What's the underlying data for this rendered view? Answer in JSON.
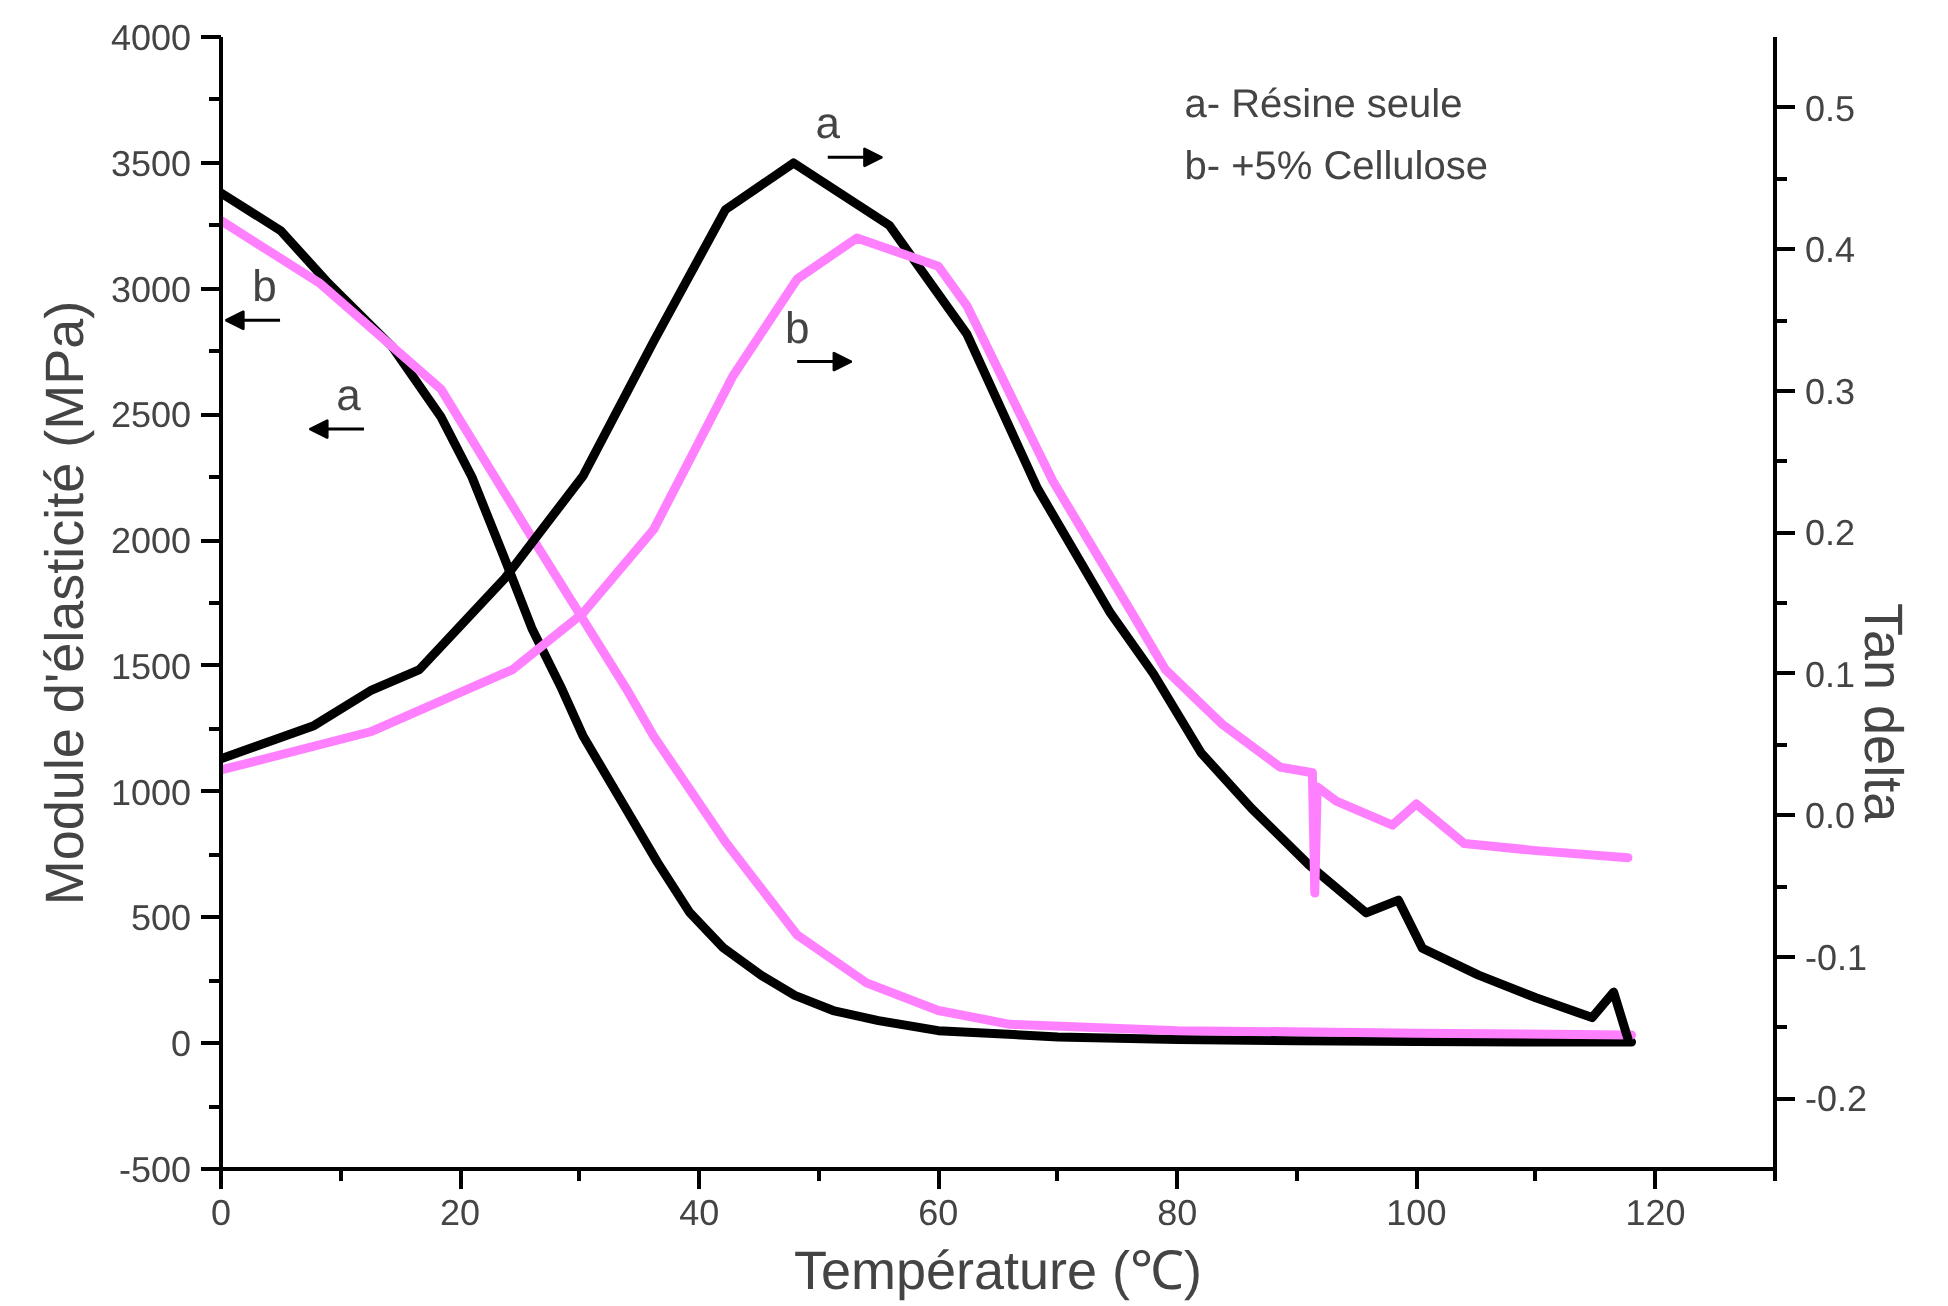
{
  "chart_data": {
    "type": "line",
    "xlabel": "Température (℃)",
    "ylabel": "Module d'élasticité (MPa)",
    "y2label": "Tan delta",
    "xlim": [
      0,
      130
    ],
    "ylim": [
      -500,
      4000
    ],
    "y2lim": [
      -0.25,
      0.55
    ],
    "xticks": [
      0,
      {
        "value": 10,
        "label": null
      },
      20,
      {
        "value": 30,
        "label": null
      },
      40,
      {
        "value": 50,
        "label": null
      },
      60,
      {
        "value": 70,
        "label": null
      },
      80,
      {
        "value": 90,
        "label": null
      },
      100,
      {
        "value": 110,
        "label": null
      },
      120,
      {
        "value": 130,
        "label": null
      }
    ],
    "yticks": [
      -500,
      {
        "value": -250,
        "label": null
      },
      0,
      {
        "value": 250,
        "label": null
      },
      500,
      {
        "value": 750,
        "label": null
      },
      1000,
      {
        "value": 1250,
        "label": null
      },
      1500,
      {
        "value": 1750,
        "label": null
      },
      2000,
      {
        "value": 2250,
        "label": null
      },
      2500,
      {
        "value": 2750,
        "label": null
      },
      3000,
      {
        "value": 3250,
        "label": null
      },
      3500,
      {
        "value": 3750,
        "label": null
      },
      4000
    ],
    "y2ticks": [
      {
        "value": -0.2,
        "label": "-0.2"
      },
      {
        "value": -0.15,
        "label": null
      },
      {
        "value": -0.1,
        "label": "-0.1"
      },
      {
        "value": -0.05,
        "label": null
      },
      {
        "value": 0,
        "label": "0.0"
      },
      {
        "value": 0.05,
        "label": null
      },
      {
        "value": 0.1,
        "label": "0.1"
      },
      {
        "value": 0.15,
        "label": null
      },
      {
        "value": 0.2,
        "label": "0.2"
      },
      {
        "value": 0.25,
        "label": null
      },
      {
        "value": 0.3,
        "label": "0.3"
      },
      {
        "value": 0.35,
        "label": null
      },
      {
        "value": 0.4,
        "label": "0.4"
      },
      {
        "value": 0.45,
        "label": null
      },
      {
        "value": 0.5,
        "label": "0.5"
      }
    ],
    "grid": false,
    "legend": false,
    "line_style": "solid",
    "marker": "none",
    "series": [
      {
        "name": "a",
        "color": "#000000",
        "x": [
          0,
          5,
          9,
          14.3,
          18.4,
          21,
          23.7,
          26,
          28.5,
          30.3,
          33.9,
          36.5,
          39.2,
          42,
          45.2,
          48,
          51.2,
          55,
          60,
          70,
          80,
          90,
          100,
          110,
          118
        ],
        "values": [
          3380,
          3230,
          3020,
          2770,
          2490,
          2250,
          1930,
          1650,
          1410,
          1220,
          930,
          720,
          520,
          380,
          270,
          190,
          130,
          90,
          50,
          25,
          15,
          10,
          7,
          5,
          5
        ]
      },
      {
        "name": "b",
        "color": "#ff80ff",
        "x": [
          0,
          8.3,
          18.4,
          25.5,
          33.9,
          36.2,
          42.2,
          48.2,
          54,
          60,
          66,
          80,
          100,
          118
        ],
        "values": [
          3270,
          3020,
          2600,
          2050,
          1410,
          1220,
          800,
          430,
          240,
          130,
          75,
          50,
          40,
          33
        ]
      },
      {
        "name": "a",
        "color": "#000000",
        "axis": "y2",
        "x": [
          0,
          7.7,
          12.5,
          16.6,
          23.7,
          30.3,
          36.2,
          42.2,
          47.9,
          55.9,
          62.4,
          68.3,
          74.4,
          78,
          82,
          86.2,
          91,
          95.8,
          98.5,
          100.5,
          105.2,
          110,
          114.7,
          116.5,
          117.7
        ],
        "values": [
          0.04,
          0.063,
          0.088,
          0.103,
          0.167,
          0.24,
          0.335,
          0.428,
          0.461,
          0.417,
          0.34,
          0.231,
          0.143,
          0.1,
          0.044,
          0.005,
          -0.035,
          -0.069,
          -0.06,
          -0.094,
          -0.113,
          -0.129,
          -0.143,
          -0.125,
          -0.158
        ]
      },
      {
        "name": "b",
        "color": "#ff80ff",
        "axis": "y2",
        "x": [
          0,
          12.5,
          24.4,
          30.3,
          36.2,
          42.8,
          48.2,
          53.2,
          60,
          62.4,
          69.6,
          76.2,
          79,
          83.8,
          88.6,
          91.3,
          91.5,
          91.7,
          93.3,
          98,
          100,
          104,
          110,
          117.7
        ],
        "values": [
          0.032,
          0.059,
          0.103,
          0.143,
          0.202,
          0.31,
          0.379,
          0.408,
          0.388,
          0.36,
          0.236,
          0.143,
          0.103,
          0.064,
          0.034,
          0.03,
          -0.055,
          0.02,
          0.01,
          -0.007,
          0.008,
          -0.02,
          -0.025,
          -0.03
        ]
      }
    ],
    "annotations": [
      "a-  Résine seule",
      "b- +5% Cellulose"
    ]
  }
}
